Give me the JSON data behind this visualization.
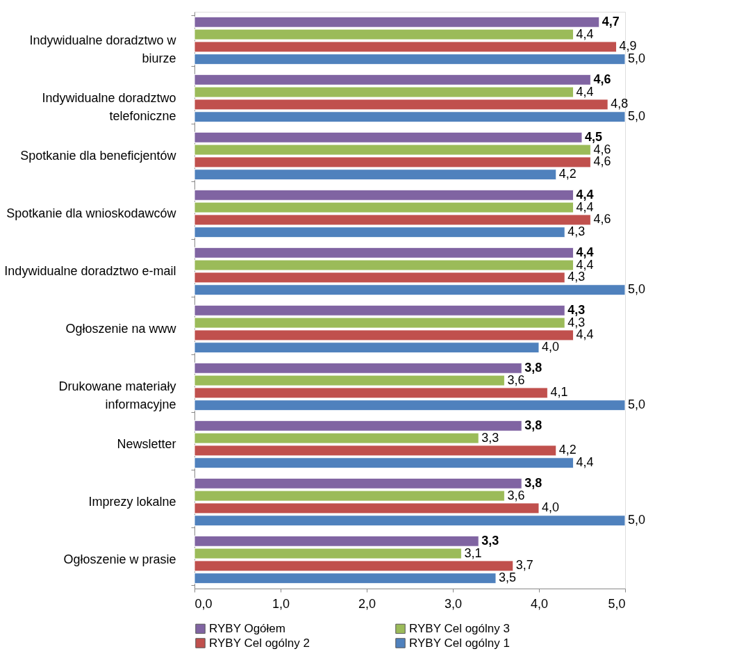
{
  "chart_data": {
    "type": "bar",
    "orientation": "horizontal",
    "categories": [
      "Indywidualne doradztwo w biurze",
      "Indywidualne doradztwo telefoniczne",
      "Spotkanie dla beneficjentów",
      "Spotkanie dla wnioskodawców",
      "Indywidualne doradztwo e-mail",
      "Ogłoszenie na www",
      "Drukowane materiały informacyjne",
      "Newsletter",
      "Imprezy lokalne",
      "Ogłoszenie w prasie"
    ],
    "series": [
      {
        "name": "RYBY Ogółem",
        "color": "#8064a2",
        "values": [
          4.7,
          4.6,
          4.5,
          4.4,
          4.4,
          4.3,
          3.8,
          3.8,
          3.8,
          3.3
        ],
        "value_labels": [
          "4,7",
          "4,6",
          "4,5",
          "4,4",
          "4,4",
          "4,3",
          "3,8",
          "3,8",
          "3,8",
          "3,3"
        ]
      },
      {
        "name": "RYBY Cel ogólny 3",
        "color": "#9bbb59",
        "values": [
          4.4,
          4.4,
          4.6,
          4.4,
          4.4,
          4.3,
          3.6,
          3.3,
          3.6,
          3.1
        ],
        "value_labels": [
          "4,4",
          "4,4",
          "4,6",
          "4,4",
          "4,4",
          "4,3",
          "3,6",
          "3,3",
          "3,6",
          "3,1"
        ]
      },
      {
        "name": "RYBY Cel ogólny 2",
        "color": "#c0504d",
        "values": [
          4.9,
          4.8,
          4.6,
          4.6,
          4.3,
          4.4,
          4.1,
          4.2,
          4.0,
          3.7
        ],
        "value_labels": [
          "4,9",
          "4,8",
          "4,6",
          "4,6",
          "4,3",
          "4,4",
          "4,1",
          "4,2",
          "4,0",
          "3,7"
        ]
      },
      {
        "name": "RYBY Cel ogólny 1",
        "color": "#4f81bd",
        "values": [
          5.0,
          5.0,
          4.2,
          4.3,
          5.0,
          4.0,
          5.0,
          4.4,
          5.0,
          3.5
        ],
        "value_labels": [
          "5,0",
          "5,0",
          "4,2",
          "4,3",
          "5,0",
          "4,0",
          "5,0",
          "4,4",
          "5,0",
          "3,5"
        ]
      }
    ],
    "xlim": [
      0,
      5
    ],
    "xticks": [
      {
        "value": 0,
        "label": "0,0"
      },
      {
        "value": 1,
        "label": "1,0"
      },
      {
        "value": 2,
        "label": "2,0"
      },
      {
        "value": 3,
        "label": "3,0"
      },
      {
        "value": 4,
        "label": "4,0"
      },
      {
        "value": 5,
        "label": "5,0"
      }
    ],
    "legend": "bottom"
  }
}
